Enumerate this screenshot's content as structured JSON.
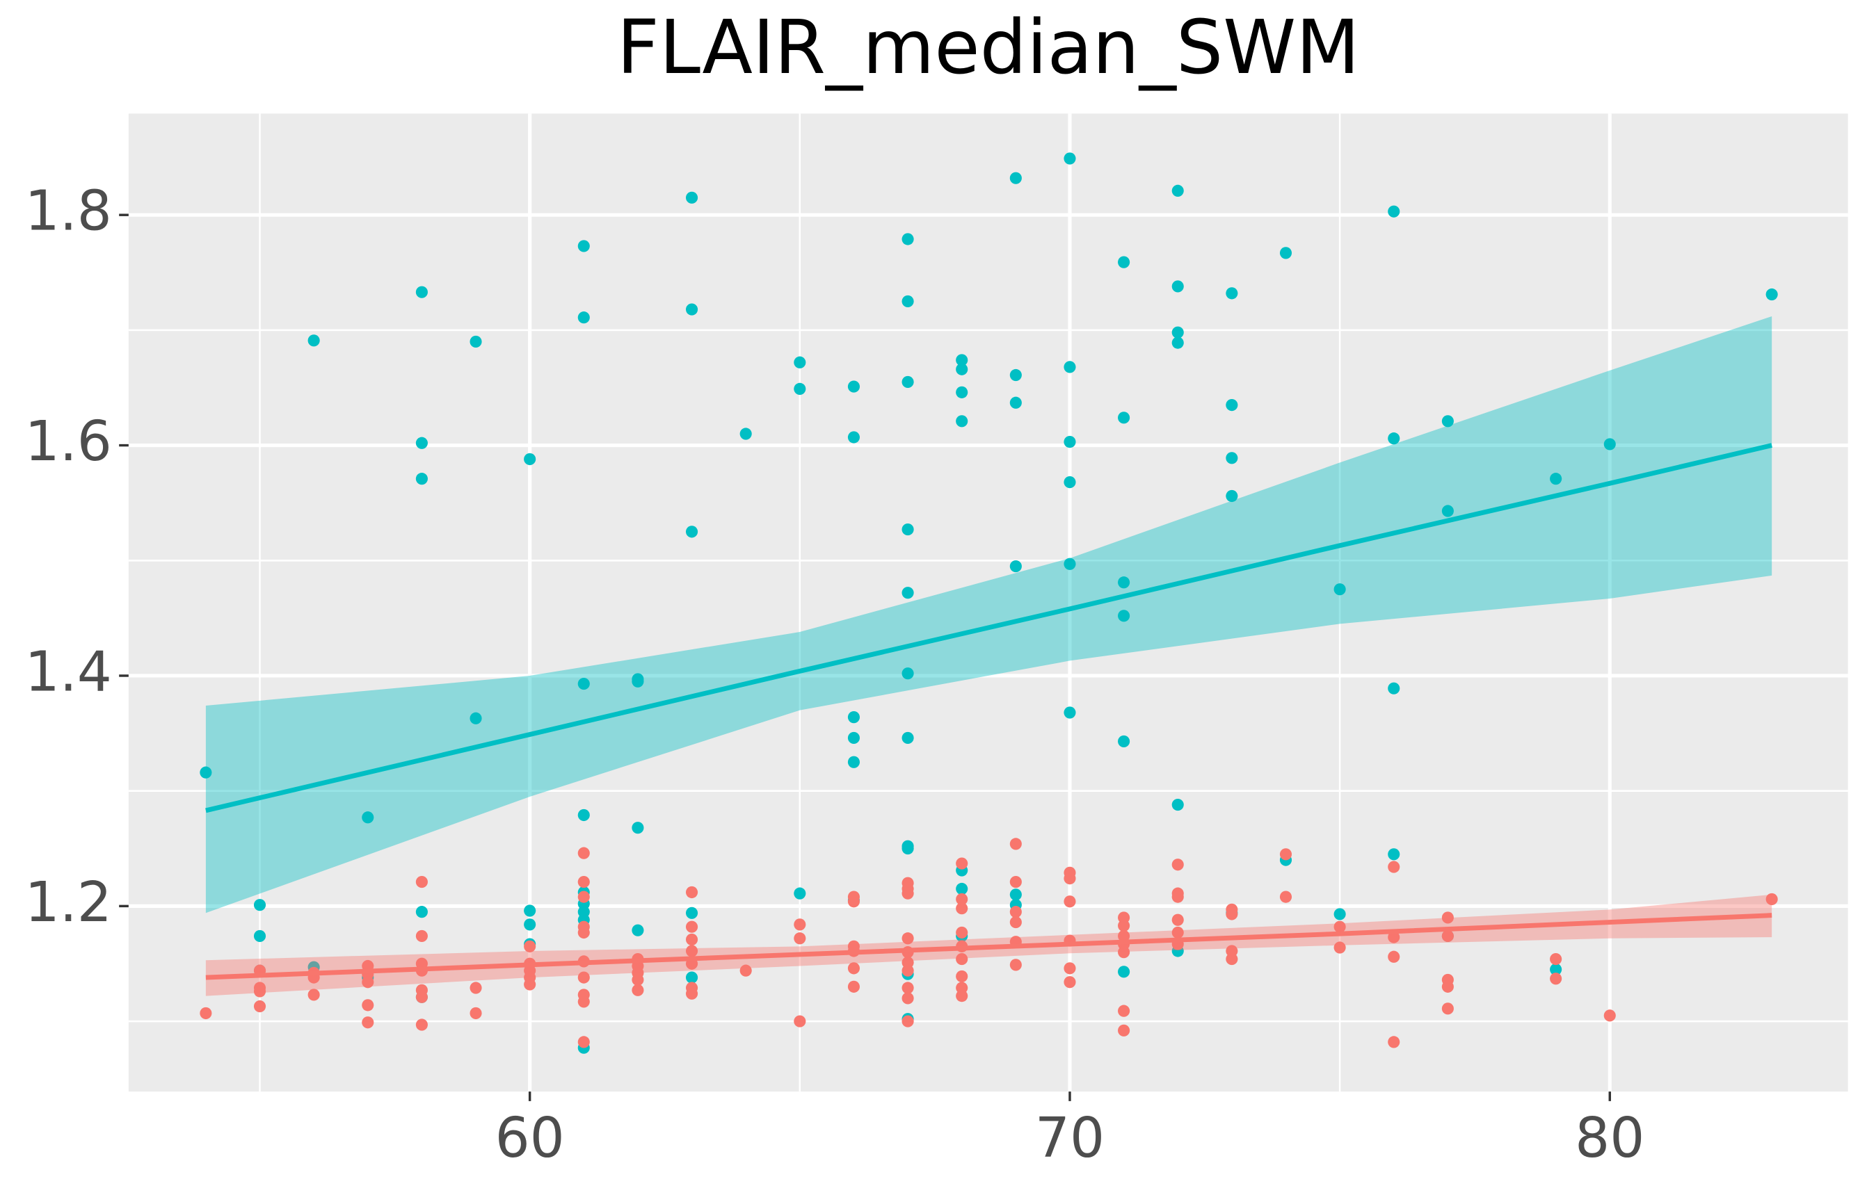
{
  "chart_data": {
    "type": "scatter",
    "title": "FLAIR_median_SWM",
    "xlim": [
      52.57,
      84.41
    ],
    "ylim": [
      1.039,
      1.888
    ],
    "xticks": [
      60,
      70,
      80
    ],
    "minor_xticks": [
      55,
      65,
      75
    ],
    "yticks": [
      1.2,
      1.4,
      1.6,
      1.8
    ],
    "minor_yticks": [
      1.1,
      1.3,
      1.5,
      1.7
    ],
    "grid": true,
    "series": [
      {
        "color": "#00BFC4",
        "x": [
          54,
          55,
          55,
          55,
          56,
          56,
          57,
          57,
          58,
          58,
          58,
          58,
          58,
          59,
          59,
          60,
          60,
          60,
          60,
          61,
          61,
          61,
          61,
          61,
          61,
          61,
          61,
          61,
          62,
          62,
          62,
          62,
          63,
          63,
          63,
          63,
          63,
          64,
          65,
          65,
          65,
          66,
          66,
          66,
          66,
          66,
          66,
          67,
          67,
          67,
          67,
          67,
          67,
          67,
          67,
          67,
          67,
          67,
          68,
          68,
          68,
          68,
          68,
          68,
          68,
          69,
          69,
          69,
          69,
          69,
          69,
          70,
          70,
          70,
          70,
          70,
          70,
          71,
          71,
          71,
          71,
          71,
          71,
          72,
          72,
          72,
          72,
          72,
          72,
          73,
          73,
          73,
          73,
          73,
          74,
          74,
          75,
          75,
          76,
          76,
          76,
          76,
          77,
          77,
          77,
          79,
          79,
          80,
          83
        ],
        "values": [
          1.316,
          1.201,
          1.174,
          1.144,
          1.691,
          1.147,
          1.277,
          1.138,
          1.733,
          1.602,
          1.571,
          1.195,
          1.121,
          1.69,
          1.363,
          1.588,
          1.196,
          1.184,
          1.167,
          1.773,
          1.711,
          1.393,
          1.279,
          1.212,
          1.202,
          1.195,
          1.188,
          1.077,
          1.397,
          1.395,
          1.268,
          1.179,
          1.815,
          1.718,
          1.525,
          1.194,
          1.138,
          1.61,
          1.672,
          1.649,
          1.211,
          1.651,
          1.607,
          1.364,
          1.346,
          1.325,
          1.205,
          1.779,
          1.725,
          1.655,
          1.527,
          1.472,
          1.402,
          1.346,
          1.252,
          1.25,
          1.141,
          1.102,
          1.674,
          1.666,
          1.646,
          1.621,
          1.231,
          1.215,
          1.174,
          1.832,
          1.661,
          1.637,
          1.495,
          1.21,
          1.201,
          1.849,
          1.668,
          1.603,
          1.568,
          1.497,
          1.368,
          1.759,
          1.624,
          1.481,
          1.452,
          1.343,
          1.143,
          1.821,
          1.738,
          1.698,
          1.689,
          1.288,
          1.161,
          1.732,
          1.635,
          1.589,
          1.556,
          1.194,
          1.767,
          1.24,
          1.475,
          1.193,
          1.803,
          1.606,
          1.389,
          1.245,
          1.621,
          1.543,
          1.174,
          1.571,
          1.145,
          1.601,
          1.731
        ],
        "fit": {
          "x": [
            54,
            60,
            65,
            70,
            75,
            80,
            83
          ],
          "values": [
            1.283,
            1.349,
            1.404,
            1.458,
            1.513,
            1.567,
            1.6
          ],
          "lower": [
            1.194,
            1.295,
            1.37,
            1.413,
            1.445,
            1.467,
            1.487
          ],
          "upper": [
            1.374,
            1.4,
            1.438,
            1.502,
            1.585,
            1.665,
            1.712
          ]
        }
      },
      {
        "color": "#F8766D",
        "x": [
          54,
          55,
          55,
          55,
          55,
          56,
          56,
          56,
          57,
          57,
          57,
          57,
          57,
          58,
          58,
          58,
          58,
          58,
          58,
          58,
          59,
          59,
          60,
          60,
          60,
          60,
          60,
          61,
          61,
          61,
          61,
          61,
          61,
          61,
          61,
          61,
          61,
          62,
          62,
          62,
          62,
          62,
          63,
          63,
          63,
          63,
          63,
          63,
          63,
          64,
          65,
          65,
          65,
          66,
          66,
          66,
          66,
          66,
          66,
          67,
          67,
          67,
          67,
          67,
          67,
          67,
          67,
          67,
          67,
          68,
          68,
          68,
          68,
          68,
          68,
          68,
          68,
          68,
          69,
          69,
          69,
          69,
          69,
          69,
          70,
          70,
          70,
          70,
          70,
          70,
          71,
          71,
          71,
          71,
          71,
          71,
          71,
          72,
          72,
          72,
          72,
          72,
          72,
          73,
          73,
          73,
          73,
          74,
          74,
          75,
          75,
          76,
          76,
          76,
          76,
          77,
          77,
          77,
          77,
          77,
          79,
          79,
          80,
          83
        ],
        "values": [
          1.107,
          1.144,
          1.129,
          1.126,
          1.113,
          1.142,
          1.138,
          1.123,
          1.148,
          1.141,
          1.134,
          1.114,
          1.099,
          1.221,
          1.174,
          1.15,
          1.144,
          1.127,
          1.121,
          1.097,
          1.129,
          1.107,
          1.165,
          1.15,
          1.144,
          1.138,
          1.132,
          1.246,
          1.221,
          1.208,
          1.182,
          1.177,
          1.152,
          1.138,
          1.123,
          1.117,
          1.082,
          1.154,
          1.148,
          1.142,
          1.136,
          1.127,
          1.212,
          1.182,
          1.171,
          1.161,
          1.15,
          1.129,
          1.124,
          1.144,
          1.184,
          1.172,
          1.1,
          1.208,
          1.204,
          1.165,
          1.161,
          1.146,
          1.13,
          1.22,
          1.215,
          1.211,
          1.172,
          1.16,
          1.151,
          1.144,
          1.129,
          1.12,
          1.1,
          1.237,
          1.206,
          1.198,
          1.177,
          1.165,
          1.154,
          1.139,
          1.129,
          1.122,
          1.254,
          1.221,
          1.195,
          1.186,
          1.169,
          1.149,
          1.229,
          1.224,
          1.204,
          1.17,
          1.146,
          1.134,
          1.19,
          1.183,
          1.174,
          1.167,
          1.16,
          1.109,
          1.092,
          1.236,
          1.211,
          1.208,
          1.188,
          1.177,
          1.167,
          1.197,
          1.193,
          1.161,
          1.154,
          1.245,
          1.208,
          1.182,
          1.164,
          1.234,
          1.173,
          1.156,
          1.082,
          1.19,
          1.174,
          1.136,
          1.13,
          1.111,
          1.154,
          1.137,
          1.105,
          1.206
        ],
        "fit": {
          "x": [
            54,
            60,
            65,
            70,
            75,
            80,
            83
          ],
          "values": [
            1.138,
            1.149,
            1.158,
            1.167,
            1.176,
            1.186,
            1.192
          ],
          "lower": [
            1.122,
            1.138,
            1.148,
            1.159,
            1.166,
            1.172,
            1.173
          ],
          "upper": [
            1.153,
            1.161,
            1.165,
            1.175,
            1.185,
            1.197,
            1.21
          ]
        }
      }
    ]
  }
}
